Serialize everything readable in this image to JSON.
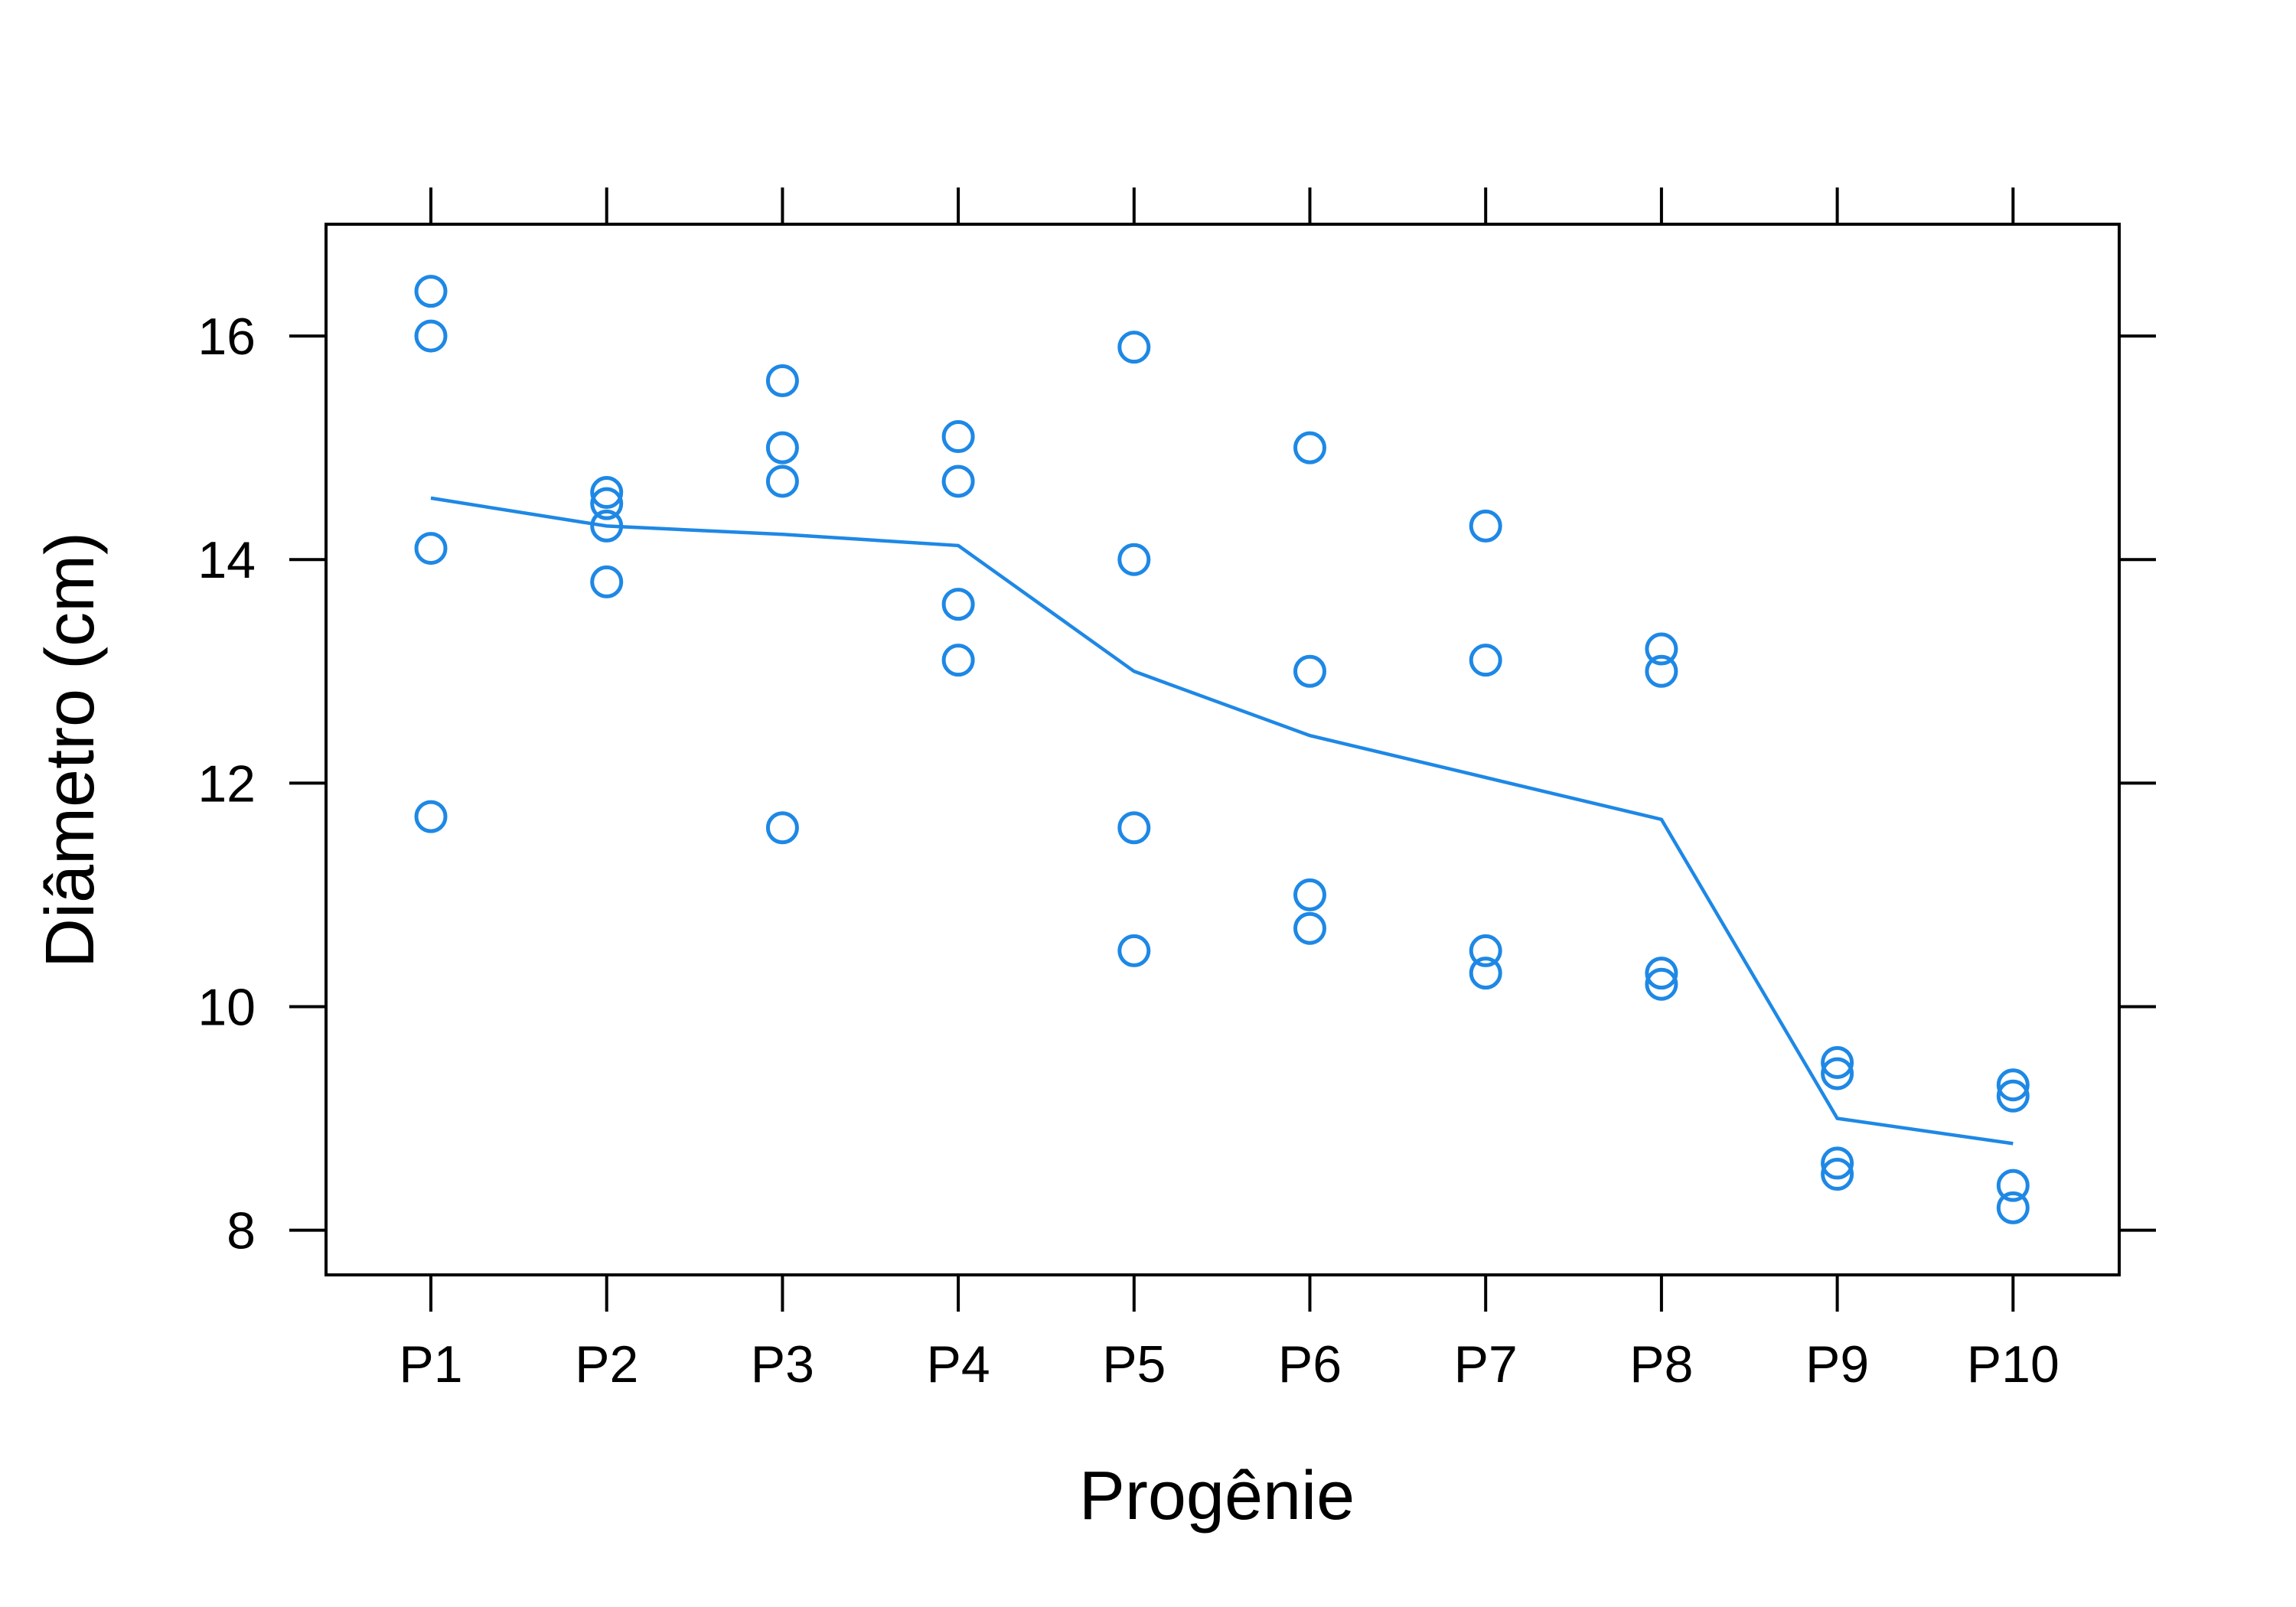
{
  "chart_data": {
    "type": "scatter",
    "title": "",
    "xlabel": "Progênie",
    "ylabel": "Diâmetro (cm)",
    "categories": [
      "P1",
      "P2",
      "P3",
      "P4",
      "P5",
      "P6",
      "P7",
      "P8",
      "P9",
      "P10"
    ],
    "ylim": [
      7.6,
      17.0
    ],
    "yticks": [
      "8",
      "10",
      "12",
      "14",
      "16"
    ],
    "grid": false,
    "legend": "none",
    "point_color": "#1E88E5",
    "line_color": "#1E88E5",
    "points": [
      {
        "x": "P1",
        "y": [
          16.4,
          16.0,
          14.1,
          11.7
        ]
      },
      {
        "x": "P2",
        "y": [
          14.6,
          14.5,
          14.3,
          13.8
        ]
      },
      {
        "x": "P3",
        "y": [
          15.6,
          15.0,
          14.7,
          11.6
        ]
      },
      {
        "x": "P4",
        "y": [
          15.1,
          14.7,
          13.6,
          13.1
        ]
      },
      {
        "x": "P5",
        "y": [
          15.9,
          14.0,
          11.6,
          10.5
        ]
      },
      {
        "x": "P6",
        "y": [
          15.0,
          13.0,
          11.0,
          10.7
        ]
      },
      {
        "x": "P7",
        "y": [
          14.3,
          13.1,
          10.5,
          10.3
        ]
      },
      {
        "x": "P8",
        "y": [
          13.2,
          13.0,
          10.3,
          10.2
        ]
      },
      {
        "x": "P9",
        "y": [
          9.5,
          9.4,
          8.6,
          8.5
        ]
      },
      {
        "x": "P10",
        "y": [
          9.3,
          9.2,
          8.4,
          8.2
        ]
      }
    ],
    "mean_line": [
      14.55,
      14.3,
      14.225,
      14.125,
      13.0,
      12.425,
      12.05,
      11.675,
      9.0,
      8.775
    ]
  }
}
